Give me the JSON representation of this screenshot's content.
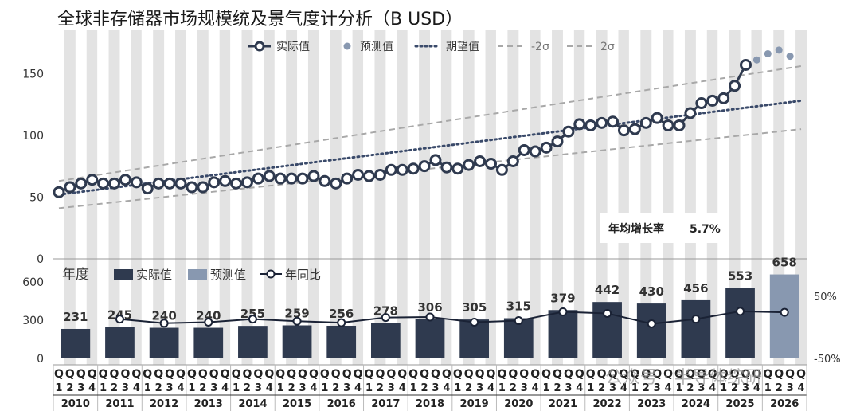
{
  "title": "全球非存储器市场规模统及景气度计分析（B USD）",
  "legend_top": {
    "actual": "实际值",
    "forecast": "预测值",
    "expected": "期望值",
    "minus2sigma": "-2σ",
    "plus2sigma": "2σ"
  },
  "legend_bottom": {
    "year": "年度",
    "actual": "实际值",
    "forecast": "预测值",
    "yoy": "年同比"
  },
  "cagr_label": "年均增长率",
  "cagr_value": "5.7%",
  "watermark": "公众号 · 半导体综研",
  "colors": {
    "actual": "#2f3a4f",
    "forecast": "#8898b0",
    "band": "#a8a8a8",
    "stripe": "#e3e3e3",
    "expected": "#3a4a6a"
  },
  "chart_data": [
    {
      "type": "line",
      "name": "quarterly",
      "yticks": [
        0,
        50,
        100,
        150
      ],
      "ylim": [
        0,
        185
      ],
      "x_quarter_labels": [
        "Q1",
        "Q2",
        "Q3",
        "Q4"
      ],
      "x_quarter_numbers": [
        "1",
        "2",
        "3",
        "4"
      ],
      "years": [
        "2010",
        "2011",
        "2012",
        "2013",
        "2014",
        "2015",
        "2016",
        "2017",
        "2018",
        "2019",
        "2020",
        "2021",
        "2022",
        "2023",
        "2024",
        "2025",
        "2026"
      ],
      "actual": [
        54,
        58,
        61,
        64,
        61,
        61,
        64,
        62,
        57,
        61,
        61,
        61,
        58,
        58,
        62,
        63,
        61,
        62,
        65,
        67,
        65,
        65,
        65,
        67,
        63,
        61,
        65,
        68,
        67,
        68,
        72,
        72,
        73,
        75,
        80,
        74,
        73,
        76,
        79,
        77,
        72,
        79,
        88,
        87,
        90,
        95,
        103,
        109,
        108,
        110,
        111,
        104,
        105,
        110,
        114,
        108,
        108,
        118,
        126,
        128,
        130,
        140,
        157
      ],
      "forecast": [
        161,
        166,
        169,
        164
      ],
      "expected_start": 52,
      "expected_end": 128,
      "band_lower_start": 41,
      "band_lower_end": 105,
      "band_upper_start": 63,
      "band_upper_end": 156
    },
    {
      "type": "bar",
      "name": "annual",
      "yticks": [
        0,
        300,
        600
      ],
      "y2ticks": [
        "50%",
        "-50%"
      ],
      "categories": [
        "2010",
        "2011",
        "2012",
        "2013",
        "2014",
        "2015",
        "2016",
        "2017",
        "2018",
        "2019",
        "2020",
        "2021",
        "2022",
        "2023",
        "2024",
        "2025",
        "2026"
      ],
      "values": [
        231,
        245,
        240,
        240,
        255,
        259,
        256,
        278,
        306,
        305,
        315,
        379,
        442,
        430,
        456,
        553,
        658
      ],
      "forecast_categories": [
        "2026"
      ],
      "yoy_percent": [
        null,
        6,
        -2,
        0,
        6,
        2,
        -1,
        9,
        10,
        0,
        3,
        20,
        17,
        -3,
        6,
        21,
        19
      ]
    }
  ]
}
